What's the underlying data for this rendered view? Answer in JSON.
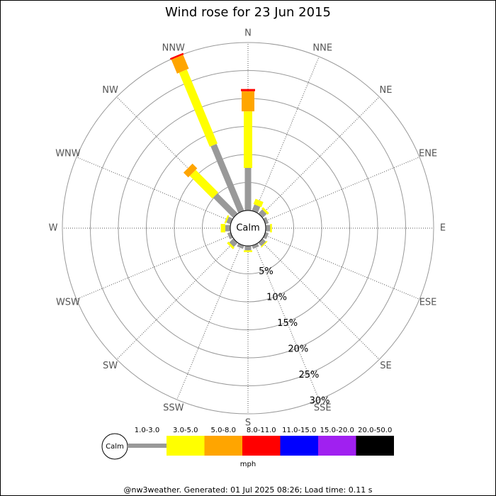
{
  "chart_data": {
    "type": "windrose",
    "title": "Wind rose for 23 Jun 2015",
    "directions": [
      "N",
      "NNE",
      "NE",
      "ENE",
      "E",
      "ESE",
      "SE",
      "SSE",
      "S",
      "SSW",
      "SW",
      "WSW",
      "W",
      "WNW",
      "NW",
      "NNW"
    ],
    "series": [
      {
        "name": "1.0-3.0",
        "color": "#999999",
        "values": [
          7.6,
          1.2,
          1.0,
          0.6,
          0.8,
          0.6,
          0.8,
          0.6,
          0.8,
          0.6,
          1.0,
          0.6,
          0.9,
          0.8,
          5.1,
          12.9
        ]
      },
      {
        "name": "3.0-5.0",
        "color": "#ffff00",
        "values": [
          10.1,
          1.0,
          0.4,
          0,
          0.3,
          0,
          0.2,
          0,
          0.3,
          0,
          0.4,
          0,
          0.8,
          0.3,
          5.7,
          14.3
        ]
      },
      {
        "name": "5.0-8.0",
        "color": "#ffa500",
        "values": [
          3.6,
          0,
          0,
          0,
          0,
          0,
          0,
          0,
          0,
          0,
          0,
          0,
          0,
          0,
          1.2,
          2.7
        ]
      },
      {
        "name": "8.0-11.0",
        "color": "#ff0000",
        "values": [
          0.4,
          0,
          0,
          0,
          0,
          0,
          0,
          0,
          0,
          0,
          0,
          0,
          0,
          0,
          0,
          0.3
        ]
      },
      {
        "name": "11.0-15.0",
        "color": "#0000ff",
        "values": [
          0,
          0,
          0,
          0,
          0,
          0,
          0,
          0,
          0,
          0,
          0,
          0,
          0,
          0,
          0,
          0
        ]
      },
      {
        "name": "15.0-20.0",
        "color": "#a020f0",
        "values": [
          0,
          0,
          0,
          0,
          0,
          0,
          0,
          0,
          0,
          0,
          0,
          0,
          0,
          0,
          0,
          0
        ]
      },
      {
        "name": "20.0-50.0",
        "color": "#000000",
        "values": [
          0,
          0,
          0,
          0,
          0,
          0,
          0,
          0,
          0,
          0,
          0,
          0,
          0,
          0,
          0,
          0
        ]
      }
    ],
    "rlim": [
      0,
      30
    ],
    "rticks": [
      {
        "value": 5,
        "label": "5%"
      },
      {
        "value": 10,
        "label": "10%"
      },
      {
        "value": 15,
        "label": "15%"
      },
      {
        "value": 20,
        "label": "20%"
      },
      {
        "value": 25,
        "label": "25%"
      },
      {
        "value": 30,
        "label": "30%"
      }
    ],
    "calm_label": "Calm",
    "unit_label": "mph",
    "footer": "@nw3weather. Generated: 01 Jul 2025 08:26; Load time: 0.11 s"
  }
}
